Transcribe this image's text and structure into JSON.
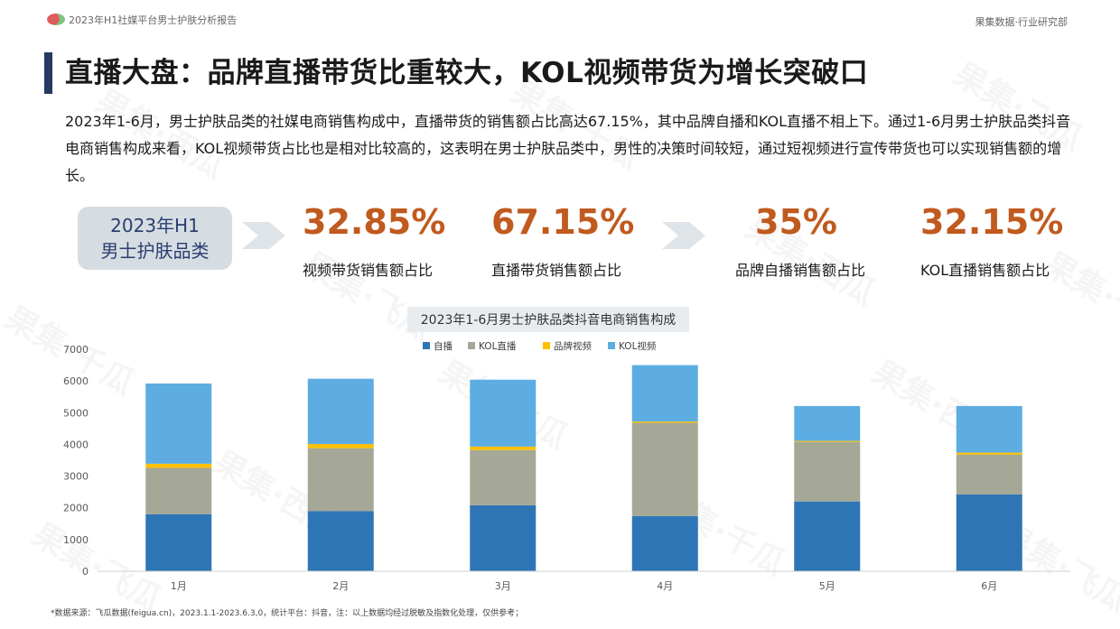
{
  "header": {
    "report_title": "2023年H1社媒平台男士护肤分析报告",
    "company": "果集数据·行业研究部"
  },
  "page_title": "直播大盘：品牌直播带货比重较大，KOL视频带货为增长突破口",
  "summary": "2023年1-6月，男士护肤品类的社媒电商销售构成中，直播带货的销售额占比高达67.15%，其中品牌自播和KOL直播不相上下。通过1-6月男士护肤品类抖音电商销售构成来看，KOL视频带货占比也是相对比较高的，这表明在男士护肤品类中，男性的决策时间较短，通过短视频进行宣传带货也可以实现销售额的增长。",
  "category": {
    "line1": "2023年H1",
    "line2": "男士护肤品类"
  },
  "stats": [
    {
      "value": "32.85%",
      "label": "视频带货销售额占比"
    },
    {
      "value": "67.15%",
      "label": "直播带货销售额占比"
    },
    {
      "value": "35%",
      "label": "品牌自播销售额占比"
    },
    {
      "value": "32.15%",
      "label": "KOL直播销售额占比"
    }
  ],
  "watermarks": [
    "果集·西瓜",
    "果集·飞瓜",
    "果集·千瓜"
  ],
  "colors": {
    "accent": "#c05a1e",
    "title_bar": "#253a5e",
    "category_bg": "#d6dde2",
    "category_text": "#2b3f70",
    "arrow": "#dfe4e8"
  },
  "chart_data": {
    "type": "bar",
    "stacked": true,
    "title": "2023年1-6月男士护肤品类抖音电商销售构成",
    "categories": [
      "1月",
      "2月",
      "3月",
      "4月",
      "5月",
      "6月"
    ],
    "series": [
      {
        "name": "自播",
        "color": "#2e75b6",
        "values": [
          1800,
          1900,
          2080,
          1740,
          2200,
          2420
        ]
      },
      {
        "name": "KOL直播",
        "color": "#a5a896",
        "values": [
          1460,
          1980,
          1740,
          2940,
          1880,
          1260
        ]
      },
      {
        "name": "品牌视频",
        "color": "#ffc000",
        "values": [
          130,
          130,
          110,
          40,
          30,
          60
        ]
      },
      {
        "name": "KOL视频",
        "color": "#5dade2",
        "values": [
          2530,
          2060,
          2110,
          1780,
          1100,
          1470
        ]
      }
    ],
    "yticks": [
      0,
      1000,
      2000,
      3000,
      4000,
      5000,
      6000,
      7000
    ],
    "ylim": [
      0,
      7000
    ],
    "legend_position": "top",
    "grid": false
  },
  "footnote": "*数据来源：飞瓜数据(feigua.cn)，2023.1.1-2023.6.3,0，统计平台：抖音，注：以上数据均经过脱敏及指数化处理，仅供参考；"
}
